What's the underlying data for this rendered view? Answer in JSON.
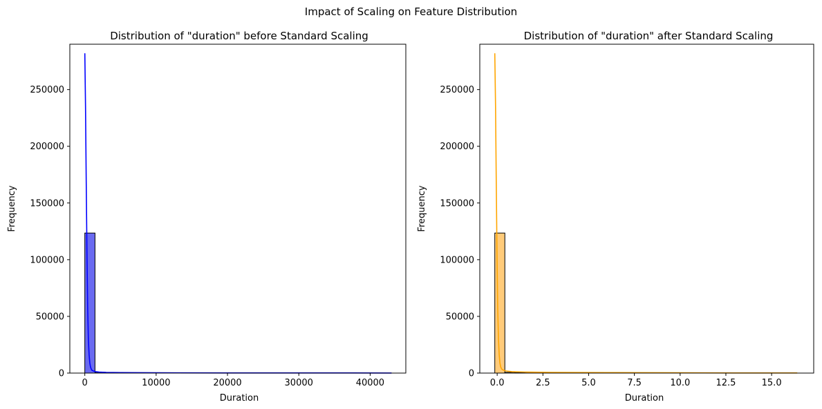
{
  "figure": {
    "suptitle": "Impact of Scaling on Feature Distribution"
  },
  "chart_data": [
    {
      "type": "bar",
      "subtype": "histogram-with-kde",
      "title": "Distribution of \"duration\" before Standard Scaling",
      "xlabel": "Duration",
      "ylabel": "Frequency",
      "xlim": [
        -2100,
        45000
      ],
      "ylim": [
        0,
        290000
      ],
      "xticks": [
        0,
        10000,
        20000,
        30000,
        40000
      ],
      "xtick_labels": [
        "0",
        "10000",
        "20000",
        "30000",
        "40000"
      ],
      "yticks": [
        0,
        50000,
        100000,
        150000,
        200000,
        250000
      ],
      "ytick_labels": [
        "0",
        "50000",
        "100000",
        "150000",
        "200000",
        "250000"
      ],
      "bar_color": "#6a6af0",
      "bar_edge_color": "#000000",
      "kde_color": "#0000ff",
      "grid": false,
      "bins": [
        {
          "x0": 0,
          "x1": 1430,
          "count": 123500
        },
        {
          "x0": 1430,
          "x1": 2860,
          "count": 700
        },
        {
          "x0": 2860,
          "x1": 4290,
          "count": 350
        },
        {
          "x0": 4290,
          "x1": 5720,
          "count": 200
        }
      ],
      "kde": {
        "x": [
          0,
          100,
          200,
          300,
          400,
          500,
          600,
          700,
          800,
          900,
          1000,
          1200,
          1500,
          2000,
          3000,
          5000,
          10000,
          20000,
          30000,
          43000
        ],
        "y": [
          282000,
          235000,
          170000,
          105000,
          58000,
          30000,
          16000,
          9000,
          5500,
          3500,
          2500,
          1800,
          1300,
          900,
          600,
          400,
          250,
          150,
          100,
          80
        ]
      }
    },
    {
      "type": "bar",
      "subtype": "histogram-with-kde",
      "title": "Distribution of \"duration\" after Standard Scaling",
      "xlabel": "Duration",
      "ylabel": "Frequency",
      "xlim": [
        -0.95,
        17.3
      ],
      "ylim": [
        0,
        290000
      ],
      "xticks": [
        0.0,
        2.5,
        5.0,
        7.5,
        10.0,
        12.5,
        15.0
      ],
      "xtick_labels": [
        "0.0",
        "2.5",
        "5.0",
        "7.5",
        "10.0",
        "12.5",
        "15.0"
      ],
      "yticks": [
        0,
        50000,
        100000,
        150000,
        200000,
        250000
      ],
      "ytick_labels": [
        "0",
        "50000",
        "100000",
        "150000",
        "200000",
        "250000"
      ],
      "bar_color": "#ffcb7a",
      "bar_edge_color": "#000000",
      "kde_color": "#ffa500",
      "grid": false,
      "bins": [
        {
          "x0": -0.13,
          "x1": 0.42,
          "count": 123500
        },
        {
          "x0": 0.42,
          "x1": 0.97,
          "count": 700
        },
        {
          "x0": 0.97,
          "x1": 1.52,
          "count": 350
        },
        {
          "x0": 1.52,
          "x1": 2.07,
          "count": 200
        }
      ],
      "kde": {
        "x": [
          -0.13,
          -0.09,
          -0.05,
          -0.01,
          0.03,
          0.07,
          0.11,
          0.15,
          0.19,
          0.25,
          0.35,
          0.5,
          0.8,
          1.5,
          3,
          6,
          10,
          13,
          16.4
        ],
        "y": [
          282000,
          235000,
          170000,
          105000,
          58000,
          30000,
          16000,
          9000,
          5500,
          3500,
          2500,
          1800,
          1300,
          900,
          600,
          400,
          250,
          150,
          100
        ]
      }
    }
  ]
}
